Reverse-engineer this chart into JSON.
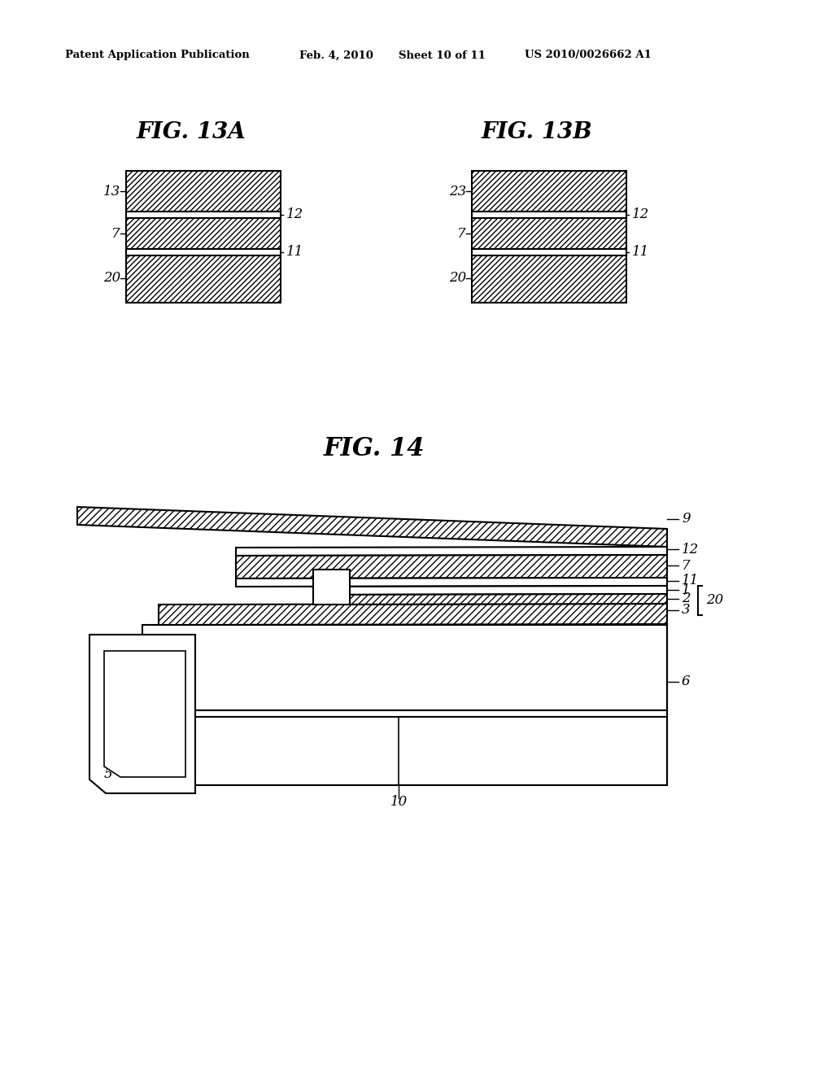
{
  "bg_color": "#ffffff",
  "header_text": "Patent Application Publication",
  "header_date": "Feb. 4, 2010",
  "header_sheet": "Sheet 10 of 11",
  "header_patent": "US 2010/0026662 A1",
  "fig13a_title": "FIG. 13A",
  "fig13b_title": "FIG. 13B",
  "fig14_title": "FIG. 14"
}
